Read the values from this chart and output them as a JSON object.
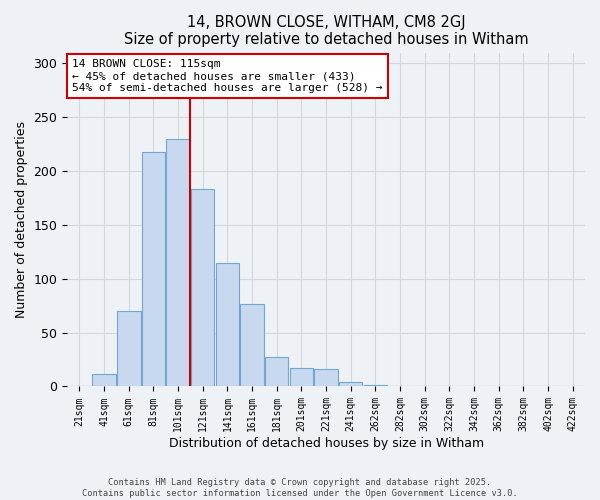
{
  "title": "14, BROWN CLOSE, WITHAM, CM8 2GJ",
  "subtitle": "Size of property relative to detached houses in Witham",
  "xlabel": "Distribution of detached houses by size in Witham",
  "ylabel": "Number of detached properties",
  "bar_values": [
    0,
    12,
    70,
    218,
    230,
    183,
    115,
    77,
    27,
    17,
    16,
    4,
    1,
    0,
    0,
    0,
    0,
    0,
    0,
    0,
    0
  ],
  "bin_labels": [
    "21sqm",
    "41sqm",
    "61sqm",
    "81sqm",
    "101sqm",
    "121sqm",
    "141sqm",
    "161sqm",
    "181sqm",
    "201sqm",
    "221sqm",
    "241sqm",
    "262sqm",
    "282sqm",
    "302sqm",
    "322sqm",
    "342sqm",
    "362sqm",
    "382sqm",
    "402sqm",
    "422sqm"
  ],
  "bar_color": "#c8d8ee",
  "bar_edge_color": "#6fa8d0",
  "grid_color": "#d0d8e0",
  "vline_x": 4.5,
  "vline_color": "#cc0000",
  "annotation_title": "14 BROWN CLOSE: 115sqm",
  "annotation_line1": "← 45% of detached houses are smaller (433)",
  "annotation_line2": "54% of semi-detached houses are larger (528) →",
  "annotation_box_color": "#ffffff",
  "annotation_box_edge": "#cc0000",
  "ylim": [
    0,
    310
  ],
  "yticks": [
    0,
    50,
    100,
    150,
    200,
    250,
    300
  ],
  "footer1": "Contains HM Land Registry data © Crown copyright and database right 2025.",
  "footer2": "Contains public sector information licensed under the Open Government Licence v3.0.",
  "background_color": "#eef2f7",
  "figsize": [
    6.0,
    5.0
  ],
  "dpi": 100
}
